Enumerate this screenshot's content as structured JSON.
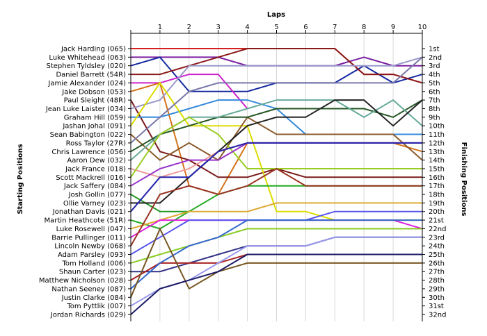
{
  "chart_data": {
    "type": "line",
    "title": "",
    "xlabel": "Laps",
    "ylabel_left": "Starting Positions",
    "ylabel_right": "Finishing Positions",
    "x_ticks": [
      "1",
      "2",
      "3",
      "4",
      "5",
      "6",
      "7",
      "8",
      "9",
      "10"
    ],
    "xlim": [
      0,
      10
    ],
    "ylim": [
      1,
      32
    ],
    "y_inverted": true,
    "grid": "vertical",
    "starting_labels": [
      "Jack Harding (065)",
      "Luke Whitehead (063)",
      "Stephen Tyldsley (020)",
      "Daniel Barrett (54R)",
      "Jamie Alexander (024)",
      "Jake Dobson (053)",
      "Paul Sleight (48R)",
      "Jean Luke Laister (034)",
      "Graham Hill (059)",
      "Jashan Johal (091)",
      "Sean Babington (022)",
      "Ross Taylor (27R)",
      "Chris Lawrence (056)",
      "Aaron Dew (032)",
      "Jack France (018)",
      "Scott Mackrell (016)",
      "Jack Saffery (084)",
      "Josh Gollin (077)",
      "Ollie Varney (023)",
      "Jonathan Davis (021)",
      "Martin Heathcote (51R)",
      "Luke Rosewell (047)",
      "Barrie Pullinger (011)",
      "Lincoln Newby (068)",
      "Adam Parsley (093)",
      "Tom Holland (006)",
      "Shaun Carter (023)",
      "Matthew Nicholson (028)",
      "Nathan Seeney (087)",
      "Justin Clarke (084)",
      "Tom Pyttlik (007)",
      "Jordan Richards (029)"
    ],
    "finishing_labels": [
      "1st",
      "2nd",
      "3rd",
      "4th",
      "5th",
      "6th",
      "7th",
      "8th",
      "9th",
      "10th",
      "11th",
      "12th",
      "13th",
      "14th",
      "15th",
      "16th",
      "17th",
      "18th",
      "19th",
      "20th",
      "21st",
      "22nd",
      "23rd",
      "24th",
      "25th",
      "26th",
      "27th",
      "28th",
      "29th",
      "30th",
      "31st",
      "32nd"
    ],
    "series": [
      {
        "color": "#d42020",
        "values": [
          1,
          1,
          1,
          1,
          1,
          1,
          1,
          1,
          4,
          4,
          5
        ]
      },
      {
        "color": "#7a1ea0",
        "values": [
          2,
          2,
          2,
          2,
          3,
          3,
          3,
          3,
          2,
          3,
          3
        ]
      },
      {
        "color": "#1428a0",
        "values": [
          3,
          2,
          6,
          6,
          6,
          5,
          5,
          5,
          3,
          5,
          4
        ]
      },
      {
        "color": "#8b1a1a",
        "values": [
          4,
          4,
          3,
          2,
          1,
          1,
          1,
          1,
          4,
          4,
          5
        ]
      },
      {
        "color": "#cc22cc",
        "values": [
          5,
          5,
          4,
          4,
          8
        ]
      },
      {
        "color": "#d4721a",
        "values": [
          6,
          5,
          17,
          18,
          12,
          12,
          12,
          12,
          12,
          12,
          13
        ]
      },
      {
        "color": "#7a1a1a",
        "values": [
          7,
          13,
          14,
          16,
          16,
          15,
          16,
          16,
          16,
          16,
          16
        ]
      },
      {
        "color": "#9999cc",
        "values": [
          8,
          7,
          3,
          3,
          3,
          3,
          3,
          3,
          3,
          3,
          2
        ]
      },
      {
        "color": "#3388dd",
        "values": [
          9,
          9,
          8,
          7,
          7,
          8,
          11,
          11,
          11,
          11,
          11
        ]
      },
      {
        "color": "#dddd00",
        "values": [
          10,
          5,
          10,
          10,
          10,
          20,
          20,
          21,
          21,
          21,
          21
        ]
      },
      {
        "color": "#8b5a2b",
        "values": [
          11,
          14,
          12,
          14,
          9,
          11,
          11,
          11,
          11,
          11,
          14
        ]
      },
      {
        "color": "#7777aa",
        "values": [
          12,
          9,
          6,
          5,
          5,
          5,
          5,
          5,
          5,
          5,
          2
        ]
      },
      {
        "color": "#225522",
        "values": [
          13,
          11,
          10,
          9,
          9,
          8,
          8,
          8,
          8,
          9,
          7
        ]
      },
      {
        "color": "#66aa99",
        "values": [
          14,
          11,
          9,
          9,
          8,
          7,
          7,
          7,
          9,
          7,
          10
        ]
      },
      {
        "color": "#ee9999",
        "values": [
          15,
          16,
          15,
          13,
          12,
          12,
          12,
          12,
          12,
          12,
          12
        ]
      },
      {
        "color": "#99cc22",
        "values": [
          16,
          11,
          9,
          11,
          15,
          15,
          15,
          15,
          15,
          15,
          15
        ]
      },
      {
        "color": "#9933cc",
        "values": [
          17,
          15,
          14,
          14,
          12,
          12,
          12,
          12,
          12,
          12,
          12
        ]
      },
      {
        "color": "#229922",
        "values": [
          18,
          20,
          20
        ]
      },
      {
        "color": "#222222",
        "values": [
          19,
          19,
          16,
          13,
          10,
          9,
          9,
          7,
          7,
          10,
          7
        ]
      },
      {
        "color": "#2222aa",
        "values": [
          20,
          16,
          16,
          13,
          12,
          12,
          12,
          12,
          12,
          12,
          12
        ]
      },
      {
        "color": "#22aa22",
        "values": [
          21,
          22,
          20,
          18,
          17,
          17,
          17,
          17,
          17,
          17,
          17
        ]
      },
      {
        "color": "#ddaa33",
        "values": [
          22,
          21,
          20,
          20,
          20,
          19,
          19,
          19,
          19,
          19,
          19
        ]
      },
      {
        "color": "#dd22dd",
        "values": [
          23,
          21,
          21,
          21,
          21,
          21,
          21,
          21,
          21,
          21,
          22
        ]
      },
      {
        "color": "#993322",
        "values": [
          24,
          18,
          17,
          18,
          17,
          15,
          17,
          17,
          17,
          17,
          17
        ]
      },
      {
        "color": "#5555ee",
        "values": [
          25,
          23,
          21,
          21,
          21,
          21,
          21,
          20,
          20,
          20,
          20
        ]
      },
      {
        "color": "#88cc22",
        "values": [
          26,
          25,
          24,
          23,
          22,
          22,
          22,
          22,
          22,
          22,
          22
        ]
      },
      {
        "color": "#333388",
        "values": [
          27,
          27,
          26,
          25,
          24,
          24,
          24,
          23,
          23,
          23,
          23
        ]
      },
      {
        "color": "#aa2222",
        "values": [
          28,
          26,
          26,
          26,
          25,
          25,
          25,
          25,
          25,
          25,
          25
        ]
      },
      {
        "color": "#3366cc",
        "values": [
          29,
          26,
          24,
          23,
          21,
          21,
          21,
          21,
          21,
          21,
          21
        ]
      },
      {
        "color": "#775522",
        "values": [
          30,
          22,
          29,
          27,
          26,
          26,
          26,
          26,
          26,
          26,
          26
        ]
      },
      {
        "color": "#9999ee",
        "values": [
          31,
          29,
          28,
          26,
          24,
          24,
          24,
          23,
          23,
          23,
          23
        ]
      },
      {
        "color": "#1a1a66",
        "values": [
          32,
          29,
          28,
          27,
          25,
          25,
          25,
          25,
          25,
          25,
          25
        ]
      }
    ]
  }
}
